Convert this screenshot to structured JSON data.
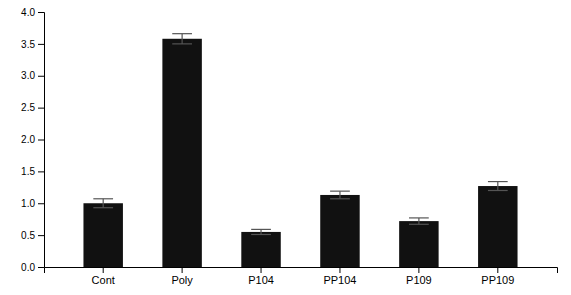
{
  "chart_data": {
    "type": "bar",
    "categories": [
      "Cont",
      "Poly",
      "P104",
      "PP104",
      "P109",
      "PP109"
    ],
    "values": [
      1.0,
      3.58,
      0.55,
      1.13,
      0.72,
      1.27
    ],
    "errors": [
      0.07,
      0.08,
      0.04,
      0.06,
      0.05,
      0.07
    ],
    "color": "#111111",
    "ylim": [
      0,
      4.0
    ],
    "yticks": [
      {
        "value": 0,
        "label": "0.0"
      },
      0.5,
      {
        "value": 1.0,
        "label": "1.0"
      },
      1.5,
      {
        "value": 2.0,
        "label": "2.0"
      },
      2.5,
      {
        "value": 3.0,
        "label": "3.0"
      },
      3.5,
      {
        "value": 4.0,
        "label": "4.0"
      }
    ],
    "grid": false
  }
}
